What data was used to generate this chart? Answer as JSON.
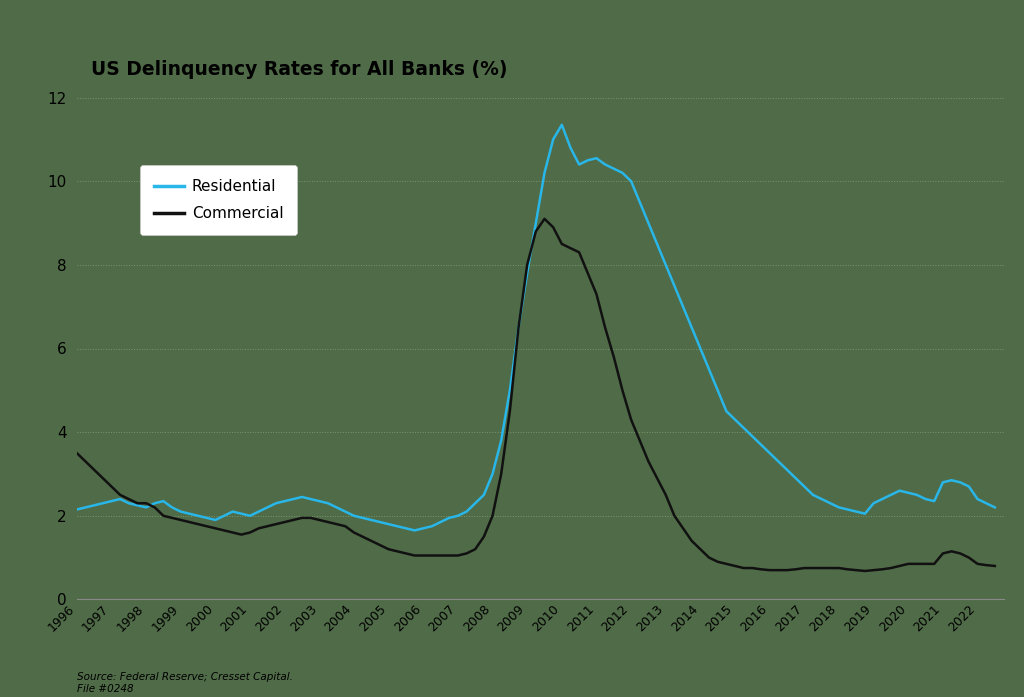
{
  "title": "US Delinquency Rates for All Banks (%)",
  "background_color": "#506b47",
  "plot_bg_color": "#506b47",
  "grid_color": "#7a9870",
  "title_box_color": "#ffffff",
  "source_text": "Source: Federal Reserve; Cresset Capital.\nFile #0248",
  "residential_color": "#29b6e8",
  "commercial_color": "#111111",
  "ylim": [
    0,
    12
  ],
  "yticks": [
    0,
    2,
    4,
    6,
    8,
    10,
    12
  ],
  "residential": {
    "years": [
      1996.0,
      1996.25,
      1996.5,
      1996.75,
      1997.0,
      1997.25,
      1997.5,
      1997.75,
      1998.0,
      1998.25,
      1998.5,
      1998.75,
      1999.0,
      1999.25,
      1999.5,
      1999.75,
      2000.0,
      2000.25,
      2000.5,
      2000.75,
      2001.0,
      2001.25,
      2001.5,
      2001.75,
      2002.0,
      2002.25,
      2002.5,
      2002.75,
      2003.0,
      2003.25,
      2003.5,
      2003.75,
      2004.0,
      2004.25,
      2004.5,
      2004.75,
      2005.0,
      2005.25,
      2005.5,
      2005.75,
      2006.0,
      2006.25,
      2006.5,
      2006.75,
      2007.0,
      2007.25,
      2007.5,
      2007.75,
      2008.0,
      2008.25,
      2008.5,
      2008.75,
      2009.0,
      2009.25,
      2009.5,
      2009.75,
      2010.0,
      2010.25,
      2010.5,
      2010.75,
      2011.0,
      2011.25,
      2011.5,
      2011.75,
      2012.0,
      2012.25,
      2012.5,
      2012.75,
      2013.0,
      2013.25,
      2013.5,
      2013.75,
      2014.0,
      2014.25,
      2014.5,
      2014.75,
      2015.0,
      2015.25,
      2015.5,
      2015.75,
      2016.0,
      2016.25,
      2016.5,
      2016.75,
      2017.0,
      2017.25,
      2017.5,
      2017.75,
      2018.0,
      2018.25,
      2018.5,
      2018.75,
      2019.0,
      2019.25,
      2019.5,
      2019.75,
      2020.0,
      2020.25,
      2020.5,
      2020.75,
      2021.0,
      2021.25,
      2021.5,
      2021.75,
      2022.0,
      2022.25,
      2022.5
    ],
    "values": [
      2.15,
      2.2,
      2.25,
      2.3,
      2.35,
      2.4,
      2.3,
      2.25,
      2.2,
      2.3,
      2.35,
      2.2,
      2.1,
      2.05,
      2.0,
      1.95,
      1.9,
      2.0,
      2.1,
      2.05,
      2.0,
      2.1,
      2.2,
      2.3,
      2.35,
      2.4,
      2.45,
      2.4,
      2.35,
      2.3,
      2.2,
      2.1,
      2.0,
      1.95,
      1.9,
      1.85,
      1.8,
      1.75,
      1.7,
      1.65,
      1.7,
      1.75,
      1.85,
      1.95,
      2.0,
      2.1,
      2.3,
      2.5,
      3.0,
      3.8,
      5.0,
      6.5,
      7.8,
      9.0,
      10.2,
      11.0,
      11.35,
      10.8,
      10.4,
      10.5,
      10.55,
      10.4,
      10.3,
      10.2,
      10.0,
      9.5,
      9.0,
      8.5,
      8.0,
      7.5,
      7.0,
      6.5,
      6.0,
      5.5,
      5.0,
      4.5,
      4.3,
      4.1,
      3.9,
      3.7,
      3.5,
      3.3,
      3.1,
      2.9,
      2.7,
      2.5,
      2.4,
      2.3,
      2.2,
      2.15,
      2.1,
      2.05,
      2.3,
      2.4,
      2.5,
      2.6,
      2.55,
      2.5,
      2.4,
      2.35,
      2.8,
      2.85,
      2.8,
      2.7,
      2.4,
      2.3,
      2.2
    ]
  },
  "commercial": {
    "years": [
      1996.0,
      1996.25,
      1996.5,
      1996.75,
      1997.0,
      1997.25,
      1997.5,
      1997.75,
      1998.0,
      1998.25,
      1998.5,
      1998.75,
      1999.0,
      1999.25,
      1999.5,
      1999.75,
      2000.0,
      2000.25,
      2000.5,
      2000.75,
      2001.0,
      2001.25,
      2001.5,
      2001.75,
      2002.0,
      2002.25,
      2002.5,
      2002.75,
      2003.0,
      2003.25,
      2003.5,
      2003.75,
      2004.0,
      2004.25,
      2004.5,
      2004.75,
      2005.0,
      2005.25,
      2005.5,
      2005.75,
      2006.0,
      2006.25,
      2006.5,
      2006.75,
      2007.0,
      2007.25,
      2007.5,
      2007.75,
      2008.0,
      2008.25,
      2008.5,
      2008.75,
      2009.0,
      2009.25,
      2009.5,
      2009.75,
      2010.0,
      2010.25,
      2010.5,
      2010.75,
      2011.0,
      2011.25,
      2011.5,
      2011.75,
      2012.0,
      2012.25,
      2012.5,
      2012.75,
      2013.0,
      2013.25,
      2013.5,
      2013.75,
      2014.0,
      2014.25,
      2014.5,
      2014.75,
      2015.0,
      2015.25,
      2015.5,
      2015.75,
      2016.0,
      2016.25,
      2016.5,
      2016.75,
      2017.0,
      2017.25,
      2017.5,
      2017.75,
      2018.0,
      2018.25,
      2018.5,
      2018.75,
      2019.0,
      2019.25,
      2019.5,
      2019.75,
      2020.0,
      2020.25,
      2020.5,
      2020.75,
      2021.0,
      2021.25,
      2021.5,
      2021.75,
      2022.0,
      2022.25,
      2022.5
    ],
    "values": [
      3.5,
      3.3,
      3.1,
      2.9,
      2.7,
      2.5,
      2.4,
      2.3,
      2.3,
      2.2,
      2.0,
      1.95,
      1.9,
      1.85,
      1.8,
      1.75,
      1.7,
      1.65,
      1.6,
      1.55,
      1.6,
      1.7,
      1.75,
      1.8,
      1.85,
      1.9,
      1.95,
      1.95,
      1.9,
      1.85,
      1.8,
      1.75,
      1.6,
      1.5,
      1.4,
      1.3,
      1.2,
      1.15,
      1.1,
      1.05,
      1.05,
      1.05,
      1.05,
      1.05,
      1.05,
      1.1,
      1.2,
      1.5,
      2.0,
      3.0,
      4.5,
      6.5,
      8.0,
      8.8,
      9.1,
      8.9,
      8.5,
      8.4,
      8.3,
      7.8,
      7.3,
      6.5,
      5.8,
      5.0,
      4.3,
      3.8,
      3.3,
      2.9,
      2.5,
      2.0,
      1.7,
      1.4,
      1.2,
      1.0,
      0.9,
      0.85,
      0.8,
      0.75,
      0.75,
      0.72,
      0.7,
      0.7,
      0.7,
      0.72,
      0.75,
      0.75,
      0.75,
      0.75,
      0.75,
      0.72,
      0.7,
      0.68,
      0.7,
      0.72,
      0.75,
      0.8,
      0.85,
      0.85,
      0.85,
      0.85,
      1.1,
      1.15,
      1.1,
      1.0,
      0.85,
      0.82,
      0.8
    ]
  }
}
